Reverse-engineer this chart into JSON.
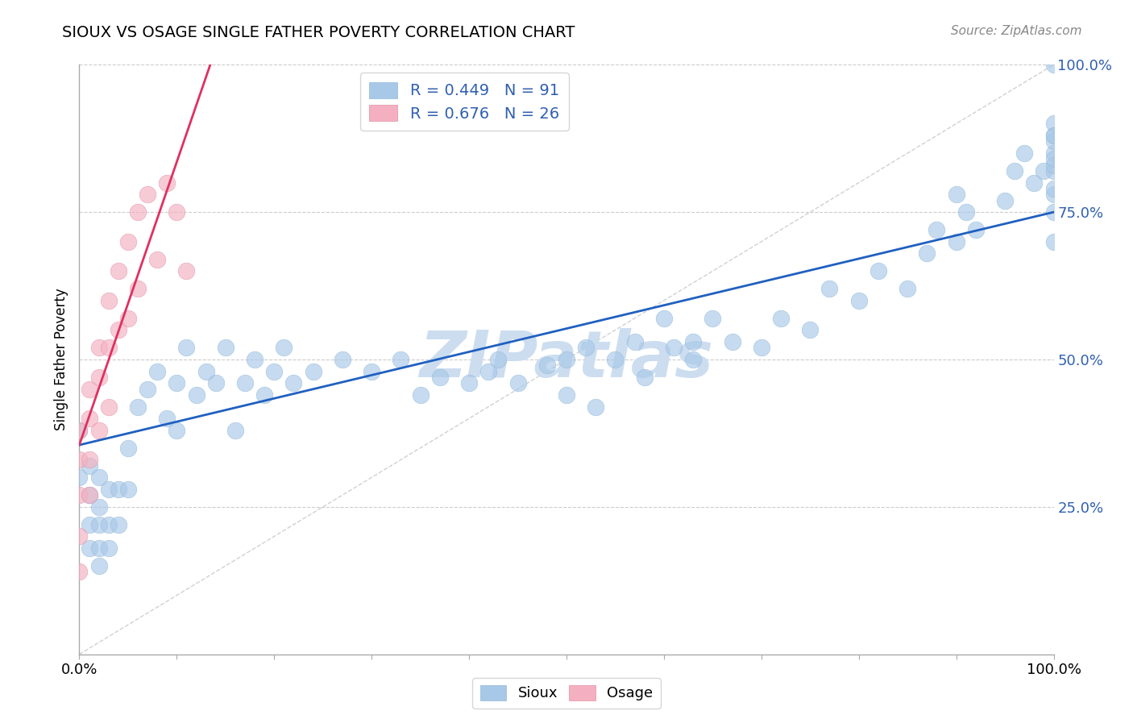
{
  "title": "SIOUX VS OSAGE SINGLE FATHER POVERTY CORRELATION CHART",
  "source_text": "Source: ZipAtlas.com",
  "ylabel": "Single Father Poverty",
  "xlim": [
    0,
    1
  ],
  "ylim": [
    0,
    1
  ],
  "sioux_color": "#a8c8e8",
  "osage_color": "#f4b0c0",
  "regression_blue_color": "#2060c0",
  "regression_pink_color": "#e03060",
  "diagonal_color": "#cccccc",
  "watermark_color": "#ccddf0",
  "background_color": "#ffffff",
  "grid_color": "#cccccc",
  "title_color": "#000000",
  "source_color": "#888888",
  "ytick_color": "#3060b0",
  "legend_text_color": "#3060b0",
  "blue_intercept": 0.355,
  "blue_slope": 0.395,
  "pink_intercept": 0.355,
  "pink_slope": 4.8,
  "sioux_x": [
    0.0,
    0.0,
    0.01,
    0.01,
    0.01,
    0.01,
    0.02,
    0.02,
    0.02,
    0.02,
    0.02,
    0.03,
    0.03,
    0.03,
    0.04,
    0.04,
    0.05,
    0.05,
    0.06,
    0.07,
    0.08,
    0.09,
    0.1,
    0.1,
    0.11,
    0.12,
    0.13,
    0.14,
    0.15,
    0.16,
    0.17,
    0.18,
    0.19,
    0.2,
    0.21,
    0.22,
    0.24,
    0.27,
    0.3,
    0.33,
    0.35,
    0.37,
    0.4,
    0.42,
    0.43,
    0.45,
    0.48,
    0.5,
    0.5,
    0.52,
    0.53,
    0.55,
    0.57,
    0.58,
    0.6,
    0.61,
    0.63,
    0.63,
    0.65,
    0.67,
    0.7,
    0.72,
    0.75,
    0.77,
    0.8,
    0.82,
    0.85,
    0.87,
    0.88,
    0.9,
    0.9,
    0.91,
    0.92,
    0.95,
    0.96,
    0.97,
    0.98,
    0.99,
    1.0,
    1.0,
    1.0,
    1.0,
    1.0,
    1.0,
    1.0,
    1.0,
    1.0,
    1.0,
    1.0,
    1.0,
    1.0
  ],
  "sioux_y": [
    0.38,
    0.3,
    0.32,
    0.27,
    0.22,
    0.18,
    0.3,
    0.25,
    0.22,
    0.18,
    0.15,
    0.28,
    0.22,
    0.18,
    0.28,
    0.22,
    0.35,
    0.28,
    0.42,
    0.45,
    0.48,
    0.4,
    0.46,
    0.38,
    0.52,
    0.44,
    0.48,
    0.46,
    0.52,
    0.38,
    0.46,
    0.5,
    0.44,
    0.48,
    0.52,
    0.46,
    0.48,
    0.5,
    0.48,
    0.5,
    0.44,
    0.47,
    0.46,
    0.48,
    0.5,
    0.46,
    0.49,
    0.5,
    0.44,
    0.52,
    0.42,
    0.5,
    0.53,
    0.47,
    0.57,
    0.52,
    0.53,
    0.5,
    0.57,
    0.53,
    0.52,
    0.57,
    0.55,
    0.62,
    0.6,
    0.65,
    0.62,
    0.68,
    0.72,
    0.7,
    0.78,
    0.75,
    0.72,
    0.77,
    0.82,
    0.85,
    0.8,
    0.82,
    0.88,
    0.85,
    0.82,
    0.78,
    0.9,
    0.87,
    0.83,
    0.88,
    0.84,
    0.79,
    0.75,
    0.7,
    1.0
  ],
  "osage_x": [
    0.0,
    0.0,
    0.0,
    0.0,
    0.0,
    0.01,
    0.01,
    0.01,
    0.01,
    0.02,
    0.02,
    0.02,
    0.03,
    0.03,
    0.03,
    0.04,
    0.04,
    0.05,
    0.05,
    0.06,
    0.06,
    0.07,
    0.08,
    0.09,
    0.1,
    0.11
  ],
  "osage_y": [
    0.38,
    0.33,
    0.27,
    0.2,
    0.14,
    0.45,
    0.4,
    0.33,
    0.27,
    0.52,
    0.47,
    0.38,
    0.6,
    0.52,
    0.42,
    0.65,
    0.55,
    0.7,
    0.57,
    0.75,
    0.62,
    0.78,
    0.67,
    0.8,
    0.75,
    0.65
  ]
}
